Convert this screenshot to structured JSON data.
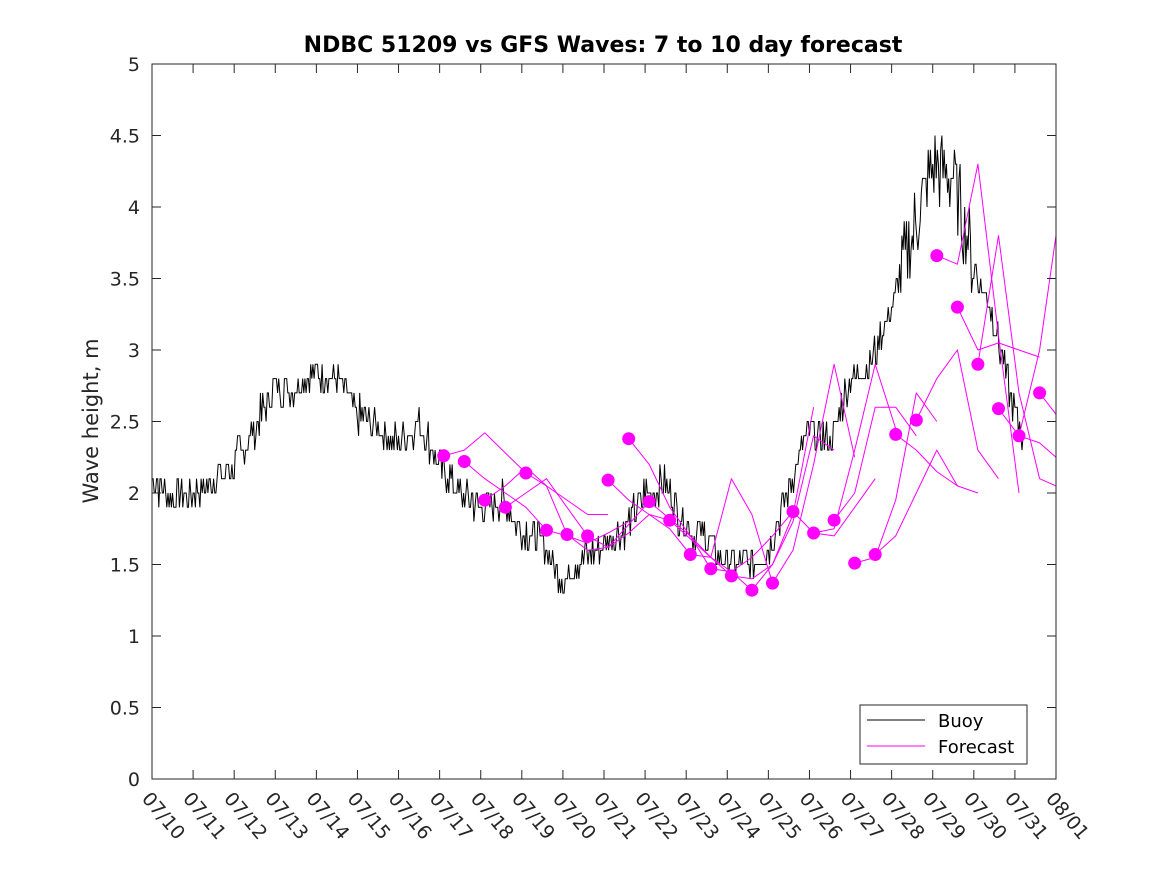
{
  "chart_data": {
    "type": "line",
    "title": "NDBC 51209 vs GFS Waves: 7 to 10 day forecast",
    "xlabel": "",
    "ylabel": "Wave height, m",
    "xlim": [
      "07/10",
      "08/01"
    ],
    "ylim": [
      0,
      5
    ],
    "grid": false,
    "legend_position": "bottom-right",
    "x_tick_labels": [
      "07/10",
      "07/11",
      "07/12",
      "07/13",
      "07/14",
      "07/15",
      "07/16",
      "07/17",
      "07/18",
      "07/19",
      "07/20",
      "07/21",
      "07/22",
      "07/23",
      "07/24",
      "07/25",
      "07/26",
      "07/27",
      "07/28",
      "07/29",
      "07/30",
      "07/31",
      "08/01"
    ],
    "y_tick_labels": [
      "0",
      "0.5",
      "1",
      "1.5",
      "2",
      "2.5",
      "3",
      "3.5",
      "4",
      "4.5",
      "5"
    ],
    "colors": {
      "buoy": "#000000",
      "forecast": "#ff00ff"
    },
    "series": [
      {
        "name": "Buoy",
        "style": "line",
        "x": [
          "07/10",
          "07/10.5",
          "07/11",
          "07/11.5",
          "07/12",
          "07/12.5",
          "07/13",
          "07/13.5",
          "07/14",
          "07/14.5",
          "07/15",
          "07/15.5",
          "07/16",
          "07/16.5",
          "07/17",
          "07/17.5",
          "07/18",
          "07/18.5",
          "07/19",
          "07/19.5",
          "07/20",
          "07/20.5",
          "07/21",
          "07/21.5",
          "07/22",
          "07/22.5",
          "07/23",
          "07/23.5",
          "07/24",
          "07/24.5",
          "07/25",
          "07/25.5",
          "07/26",
          "07/26.5",
          "07/27",
          "07/27.5",
          "07/28",
          "07/28.5",
          "07/29",
          "07/29.5",
          "07/30",
          "07/30.5",
          "07/31",
          "07/31.2"
        ],
        "y": [
          2.1,
          1.95,
          2.0,
          2.1,
          2.2,
          2.45,
          2.75,
          2.75,
          2.85,
          2.8,
          2.55,
          2.45,
          2.35,
          2.5,
          2.2,
          2.0,
          1.9,
          1.95,
          1.75,
          1.65,
          1.4,
          1.55,
          1.65,
          1.75,
          2.0,
          2.05,
          1.75,
          1.7,
          1.5,
          1.5,
          1.6,
          2.05,
          2.45,
          2.35,
          2.8,
          2.9,
          3.3,
          3.8,
          4.3,
          4.2,
          3.6,
          3.2,
          2.55,
          2.4
        ]
      },
      {
        "name": "Forecast",
        "style": "lines",
        "runs": [
          {
            "x": [
              "07/17.1",
              "07/17.6",
              "07/18.1",
              "07/18.6",
              "07/19.1"
            ],
            "y": [
              2.26,
              2.3,
              2.42,
              2.28,
              2.14
            ]
          },
          {
            "x": [
              "07/17.6",
              "07/18.1",
              "07/18.6",
              "07/19.1",
              "07/19.6"
            ],
            "y": [
              2.22,
              2.1,
              2.0,
              1.9,
              1.74
            ]
          },
          {
            "x": [
              "07/18.1",
              "07/18.6",
              "07/19.1",
              "07/19.6",
              "07/20.1"
            ],
            "y": [
              1.95,
              2.05,
              2.18,
              2.05,
              1.71
            ]
          },
          {
            "x": [
              "07/18.6",
              "07/19.1",
              "07/19.6",
              "07/20.1",
              "07/20.6"
            ],
            "y": [
              1.9,
              2.0,
              2.1,
              1.9,
              1.7
            ]
          },
          {
            "x": [
              "07/19.1",
              "07/19.6",
              "07/20.1",
              "07/20.6",
              "07/21.1"
            ],
            "y": [
              2.14,
              2.05,
              1.95,
              1.85,
              1.85
            ]
          },
          {
            "x": [
              "07/19.6",
              "07/20.1",
              "07/20.6",
              "07/21.1",
              "07/21.6"
            ],
            "y": [
              1.74,
              1.7,
              1.65,
              1.72,
              1.8
            ]
          },
          {
            "x": [
              "07/20.1",
              "07/20.6",
              "07/21.1",
              "07/21.6",
              "07/22.1"
            ],
            "y": [
              1.71,
              1.6,
              1.62,
              1.78,
              1.94
            ]
          },
          {
            "x": [
              "07/20.6",
              "07/21.1",
              "07/21.6",
              "07/22.1",
              "07/22.6"
            ],
            "y": [
              1.7,
              1.62,
              1.72,
              1.85,
              1.81
            ]
          },
          {
            "x": [
              "07/21.1",
              "07/21.6",
              "07/22.1",
              "07/22.6",
              "07/23.1"
            ],
            "y": [
              2.09,
              1.95,
              1.85,
              1.75,
              1.57
            ]
          },
          {
            "x": [
              "07/21.6",
              "07/22.1",
              "07/22.6",
              "07/23.1",
              "07/23.6"
            ],
            "y": [
              2.38,
              2.2,
              1.9,
              1.7,
              1.47
            ]
          },
          {
            "x": [
              "07/22.1",
              "07/22.6",
              "07/23.1",
              "07/23.6",
              "07/24.1"
            ],
            "y": [
              1.94,
              1.82,
              1.7,
              1.55,
              1.42
            ]
          },
          {
            "x": [
              "07/22.6",
              "07/23.1",
              "07/23.6",
              "07/24.1",
              "07/24.6"
            ],
            "y": [
              1.81,
              1.68,
              1.55,
              1.45,
              1.32
            ]
          },
          {
            "x": [
              "07/23.1",
              "07/23.6",
              "07/24.1",
              "07/24.6",
              "07/25.1"
            ],
            "y": [
              1.57,
              1.55,
              2.1,
              1.85,
              1.37
            ]
          },
          {
            "x": [
              "07/23.6",
              "07/24.1",
              "07/24.6",
              "07/25.1",
              "07/25.6"
            ],
            "y": [
              1.47,
              1.45,
              1.55,
              1.7,
              1.87
            ]
          },
          {
            "x": [
              "07/24.1",
              "07/24.6",
              "07/25.1",
              "07/25.6",
              "07/26.1"
            ],
            "y": [
              1.42,
              1.4,
              1.5,
              1.85,
              2.6
            ]
          },
          {
            "x": [
              "07/24.6",
              "07/25.1",
              "07/25.6",
              "07/26.1",
              "07/26.6"
            ],
            "y": [
              1.32,
              1.5,
              1.8,
              2.4,
              2.3
            ]
          },
          {
            "x": [
              "07/25.1",
              "07/25.6",
              "07/26.1",
              "07/26.6",
              "07/27.1"
            ],
            "y": [
              1.37,
              1.6,
              2.2,
              2.9,
              2.25
            ]
          },
          {
            "x": [
              "07/25.6",
              "07/26.1",
              "07/26.6",
              "07/27.1",
              "07/27.6"
            ],
            "y": [
              1.87,
              1.72,
              1.7,
              1.9,
              2.1
            ]
          },
          {
            "x": [
              "07/26.1",
              "07/26.6",
              "07/27.1",
              "07/27.6",
              "07/28.1"
            ],
            "y": [
              1.72,
              1.75,
              2.3,
              2.9,
              2.45
            ]
          },
          {
            "x": [
              "07/26.6",
              "07/27.1",
              "07/27.6",
              "07/28.1",
              "07/28.6"
            ],
            "y": [
              1.81,
              2.0,
              2.6,
              2.6,
              2.4
            ]
          },
          {
            "x": [
              "07/27.1",
              "07/27.6",
              "07/28.1",
              "07/28.6",
              "07/29.1"
            ],
            "y": [
              1.51,
              1.55,
              1.95,
              2.7,
              2.5
            ]
          },
          {
            "x": [
              "07/27.6",
              "07/28.1",
              "07/28.6",
              "07/29.1",
              "07/29.6"
            ],
            "y": [
              1.57,
              1.7,
              2.0,
              2.3,
              2.05
            ]
          },
          {
            "x": [
              "07/28.1",
              "07/28.6",
              "07/29.1",
              "07/29.6",
              "07/30.1"
            ],
            "y": [
              2.41,
              2.3,
              2.15,
              2.05,
              2.0
            ]
          },
          {
            "x": [
              "07/28.6",
              "07/29.1",
              "07/29.6",
              "07/30.1",
              "07/30.6"
            ],
            "y": [
              2.51,
              2.8,
              3.0,
              2.3,
              2.1
            ]
          },
          {
            "x": [
              "07/29.1",
              "07/29.6",
              "07/30.1",
              "07/30.6",
              "07/31.1"
            ],
            "y": [
              3.66,
              3.6,
              4.3,
              3.1,
              2.0
            ]
          },
          {
            "x": [
              "07/29.6",
              "07/30.1",
              "07/30.6",
              "07/31.1",
              "07/31.6"
            ],
            "y": [
              3.3,
              3.0,
              3.05,
              3.0,
              2.95
            ]
          },
          {
            "x": [
              "07/30.1",
              "07/30.6",
              "07/31.1",
              "07/31.6",
              "08/01"
            ],
            "y": [
              2.9,
              3.8,
              2.7,
              2.1,
              2.05
            ]
          },
          {
            "x": [
              "07/30.6",
              "07/31.1",
              "07/31.6",
              "08/01"
            ],
            "y": [
              2.59,
              2.4,
              2.35,
              2.25
            ]
          },
          {
            "x": [
              "07/31.1",
              "07/31.6",
              "08/01"
            ],
            "y": [
              2.4,
              3.0,
              3.8
            ]
          },
          {
            "x": [
              "07/31.6",
              "08/01"
            ],
            "y": [
              2.7,
              2.55
            ]
          }
        ]
      }
    ],
    "forecast_markers": {
      "x": [
        "07/17.1",
        "07/17.6",
        "07/18.1",
        "07/18.6",
        "07/19.1",
        "07/19.6",
        "07/20.1",
        "07/20.6",
        "07/21.1",
        "07/21.6",
        "07/22.1",
        "07/22.6",
        "07/23.1",
        "07/23.6",
        "07/24.1",
        "07/24.6",
        "07/25.1",
        "07/25.6",
        "07/26.1",
        "07/26.6",
        "07/27.1",
        "07/27.6",
        "07/28.1",
        "07/28.6",
        "07/29.1",
        "07/29.6",
        "07/30.1",
        "07/30.6",
        "07/31.1",
        "07/31.6"
      ],
      "y": [
        2.26,
        2.22,
        1.95,
        1.9,
        2.14,
        1.74,
        1.71,
        1.7,
        2.09,
        2.38,
        1.94,
        1.81,
        1.57,
        1.47,
        1.42,
        1.32,
        1.37,
        1.87,
        1.72,
        1.81,
        1.51,
        1.57,
        2.41,
        2.51,
        3.66,
        3.3,
        2.9,
        2.59,
        2.4,
        2.7
      ]
    }
  },
  "legend": {
    "items": [
      {
        "label": "Buoy"
      },
      {
        "label": "Forecast"
      }
    ]
  }
}
